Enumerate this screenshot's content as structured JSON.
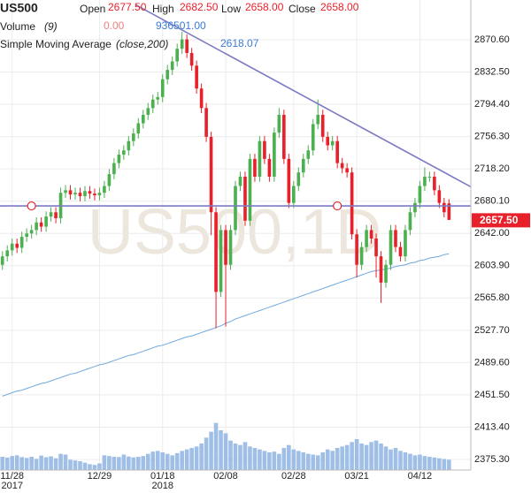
{
  "chart_data": {
    "type": "candlestick",
    "watermark": "US500,1D",
    "grid": true,
    "xlim": [
      -0.5,
      96.5
    ],
    "ylim": [
      2362.8,
      2917.5
    ],
    "yticks": [
      {
        "value": 2870.6,
        "label": "2870.60"
      },
      {
        "value": 2832.5,
        "label": "2832.50"
      },
      {
        "value": 2794.4,
        "label": "2794.40"
      },
      {
        "value": 2756.3,
        "label": "2756.30"
      },
      {
        "value": 2718.2,
        "label": "2718.20"
      },
      {
        "value": 2680.1,
        "label": "2680.10"
      },
      {
        "value": 2642,
        "label": "2642.00"
      },
      {
        "value": 2603.9,
        "label": "2603.90"
      },
      {
        "value": 2565.8,
        "label": "2565.80"
      },
      {
        "value": 2527.7,
        "label": "2527.70"
      },
      {
        "value": 2489.6,
        "label": "2489.60"
      },
      {
        "value": 2451.5,
        "label": "2451.50"
      },
      {
        "value": 2413.4,
        "label": "2413.40"
      },
      {
        "value": 2375.3,
        "label": "2375.30"
      }
    ],
    "categories": [
      null,
      null,
      "11/28",
      null,
      null,
      null,
      null,
      null,
      null,
      null,
      null,
      null,
      null,
      null,
      null,
      null,
      null,
      null,
      null,
      null,
      "12/29",
      null,
      null,
      null,
      null,
      null,
      null,
      null,
      null,
      null,
      null,
      null,
      null,
      "01/18",
      null,
      null,
      null,
      null,
      null,
      null,
      null,
      null,
      null,
      null,
      null,
      null,
      "02/08",
      null,
      null,
      null,
      null,
      null,
      null,
      null,
      null,
      null,
      null,
      null,
      null,
      null,
      "02/28",
      null,
      null,
      null,
      null,
      null,
      null,
      null,
      null,
      null,
      null,
      null,
      null,
      "03/21",
      null,
      null,
      null,
      null,
      null,
      null,
      null,
      null,
      null,
      null,
      null,
      null,
      "04/12",
      null,
      null,
      null,
      null,
      null,
      null
    ],
    "x_sublabels": [
      null,
      null,
      "2017",
      null,
      null,
      null,
      null,
      null,
      null,
      null,
      null,
      null,
      null,
      null,
      null,
      null,
      null,
      null,
      null,
      null,
      null,
      null,
      null,
      null,
      null,
      null,
      null,
      null,
      null,
      null,
      null,
      null,
      null,
      "2018",
      null,
      null,
      null,
      null,
      null,
      null,
      null,
      null,
      null,
      null,
      null,
      null,
      null,
      null,
      null,
      null,
      null,
      null,
      null,
      null,
      null,
      null,
      null,
      null,
      null,
      null,
      null,
      null,
      null,
      null,
      null,
      null,
      null,
      null,
      null,
      null,
      null,
      null,
      null,
      null,
      null,
      null,
      null,
      null,
      null,
      null,
      null,
      null,
      null,
      null,
      null,
      null,
      null,
      null,
      null,
      null,
      null,
      null,
      null
    ],
    "series": [
      {
        "name": "US500",
        "type": "candlestick",
        "up_color": "#4caf50",
        "down_color": "#e8202a",
        "legend": [
          {
            "label": "Open",
            "value": "2677.50"
          },
          {
            "label": "High",
            "value": "2682.50"
          },
          {
            "label": "Low",
            "value": "2658.00"
          },
          {
            "label": "Close",
            "value": "2658.00"
          }
        ],
        "open": [
          2605,
          2615,
          2622,
          2630,
          2625,
          2638,
          2642,
          2646,
          2655,
          2650,
          2662,
          2667,
          2660,
          2690,
          2693,
          2688,
          2690,
          2686,
          2692,
          2689,
          2687,
          2690,
          2698,
          2712,
          2725,
          2735,
          2740,
          2751,
          2760,
          2772,
          2782,
          2790,
          2800,
          2803,
          2824,
          2835,
          2845,
          2860,
          2871,
          2855,
          2840,
          2813,
          2790,
          2756,
          2667,
          2573,
          2646,
          2605,
          2646,
          2698,
          2709,
          2657,
          2730,
          2709,
          2751,
          2730,
          2709,
          2761,
          2782,
          2730,
          2678,
          2698,
          2714,
          2730,
          2740,
          2771,
          2782,
          2756,
          2746,
          2751,
          2725,
          2719,
          2714,
          2641,
          2605,
          2626,
          2646,
          2636,
          2615,
          2584,
          2605,
          2646,
          2626,
          2615,
          2646,
          2667,
          2678,
          2698,
          2709,
          2709,
          2693,
          2678,
          2677.5
        ],
        "high": [
          2621,
          2628,
          2636,
          2636,
          2644,
          2648,
          2652,
          2661,
          2661,
          2668,
          2673,
          2673,
          2696,
          2699,
          2699,
          2696,
          2696,
          2698,
          2698,
          2695,
          2696,
          2704,
          2718,
          2731,
          2741,
          2746,
          2757,
          2766,
          2778,
          2788,
          2796,
          2806,
          2809,
          2830,
          2841,
          2851,
          2866,
          2880,
          2877,
          2861,
          2846,
          2819,
          2796,
          2762,
          2673,
          2652,
          2652,
          2652,
          2704,
          2715,
          2715,
          2736,
          2736,
          2757,
          2757,
          2736,
          2767,
          2790,
          2788,
          2736,
          2704,
          2720,
          2736,
          2746,
          2777,
          2800,
          2788,
          2762,
          2757,
          2757,
          2731,
          2725,
          2720,
          2647,
          2632,
          2652,
          2652,
          2642,
          2621,
          2611,
          2652,
          2652,
          2632,
          2652,
          2673,
          2684,
          2704,
          2720,
          2715,
          2715,
          2699,
          2684,
          2682.5
        ],
        "low": [
          2599,
          2609,
          2616,
          2619,
          2619,
          2632,
          2636,
          2640,
          2644,
          2644,
          2656,
          2654,
          2654,
          2684,
          2682,
          2682,
          2680,
          2680,
          2683,
          2681,
          2681,
          2684,
          2692,
          2706,
          2719,
          2729,
          2734,
          2745,
          2754,
          2766,
          2776,
          2784,
          2794,
          2797,
          2818,
          2829,
          2839,
          2854,
          2849,
          2834,
          2807,
          2784,
          2750,
          2640,
          2530,
          2567,
          2532,
          2599,
          2640,
          2692,
          2651,
          2651,
          2703,
          2703,
          2724,
          2703,
          2703,
          2755,
          2724,
          2672,
          2672,
          2692,
          2708,
          2724,
          2734,
          2765,
          2750,
          2740,
          2740,
          2719,
          2713,
          2708,
          2635,
          2590,
          2599,
          2620,
          2630,
          2590,
          2560,
          2578,
          2599,
          2620,
          2609,
          2609,
          2640,
          2661,
          2672,
          2692,
          2703,
          2687,
          2672,
          2661,
          2658
        ],
        "close": [
          2615,
          2622,
          2630,
          2625,
          2638,
          2642,
          2646,
          2655,
          2650,
          2662,
          2667,
          2660,
          2690,
          2693,
          2688,
          2690,
          2686,
          2692,
          2689,
          2687,
          2690,
          2698,
          2712,
          2725,
          2735,
          2740,
          2751,
          2760,
          2772,
          2782,
          2790,
          2800,
          2803,
          2824,
          2835,
          2845,
          2860,
          2871,
          2855,
          2840,
          2813,
          2790,
          2756,
          2667,
          2573,
          2646,
          2605,
          2646,
          2698,
          2709,
          2657,
          2730,
          2709,
          2751,
          2730,
          2709,
          2761,
          2782,
          2730,
          2678,
          2698,
          2714,
          2730,
          2740,
          2771,
          2782,
          2756,
          2746,
          2751,
          2725,
          2719,
          2714,
          2641,
          2605,
          2626,
          2646,
          2636,
          2615,
          2584,
          2605,
          2646,
          2626,
          2615,
          2646,
          2667,
          2678,
          2698,
          2709,
          2709,
          2693,
          2678,
          2667,
          2658
        ]
      },
      {
        "name": "Simple Moving Average",
        "params": "(close,200)",
        "legend_value": "2618.07",
        "color": "#6fa8dc",
        "values": [
          2450,
          2452,
          2454,
          2456,
          2457,
          2459,
          2461,
          2463,
          2465,
          2466,
          2468,
          2470,
          2472,
          2474,
          2476,
          2477,
          2479,
          2481,
          2483,
          2485,
          2487,
          2488,
          2490,
          2492,
          2494,
          2496,
          2498,
          2499,
          2501,
          2503,
          2505,
          2507,
          2509,
          2510,
          2512,
          2514,
          2516,
          2518,
          2520,
          2521,
          2523,
          2525,
          2527,
          2529,
          2531,
          2533,
          2536,
          2538,
          2541,
          2543,
          2545,
          2547,
          2549,
          2551,
          2553,
          2555,
          2557,
          2559,
          2561,
          2563,
          2565,
          2567,
          2569,
          2571,
          2573,
          2575,
          2577,
          2579,
          2581,
          2583,
          2585,
          2587,
          2589,
          2591,
          2593,
          2595,
          2597,
          2598,
          2599,
          2600,
          2601,
          2603,
          2604,
          2605,
          2607,
          2608,
          2610,
          2611,
          2613,
          2614,
          2615,
          2617,
          2618.07
        ]
      },
      {
        "name": "Volume",
        "params": "(9)",
        "legend_values": [
          "0.00",
          "936501.00"
        ],
        "color": "#8fb4e3",
        "vlim": [
          0,
          6000000
        ],
        "values": [
          900000,
          850000,
          950000,
          1000000,
          880000,
          820000,
          900000,
          760000,
          980000,
          870000,
          930000,
          800000,
          1100000,
          1050000,
          700000,
          650000,
          600000,
          500000,
          400000,
          350000,
          450000,
          1000000,
          950000,
          900000,
          880000,
          1050000,
          920000,
          860000,
          900000,
          950000,
          1100000,
          1250000,
          1300000,
          1200000,
          1100000,
          1000000,
          1150000,
          1300000,
          1400000,
          1500000,
          1600000,
          1800000,
          2200000,
          2600000,
          3200000,
          2700000,
          2500000,
          2000000,
          1800000,
          1700000,
          1900000,
          1600000,
          1500000,
          1400000,
          1300000,
          1200000,
          1250000,
          1100000,
          1500000,
          1700000,
          1400000,
          1300000,
          1200000,
          1100000,
          1050000,
          1000000,
          1200000,
          1400000,
          1300000,
          1500000,
          1600000,
          1700000,
          1900000,
          2100000,
          1800000,
          1700000,
          1900000,
          2000000,
          1800000,
          1600000,
          1400000,
          1500000,
          1300000,
          1200000,
          1100000,
          1000000,
          1050000,
          950000,
          900000,
          850000,
          800000,
          750000,
          700000
        ]
      }
    ],
    "trendlines": [
      {
        "color": "#7b7bc4",
        "x": [
          27.4,
          96.5
        ],
        "y": [
          2912,
          2697
        ]
      },
      {
        "color": "#7b7bc4",
        "x": [
          -0.5,
          96.5
        ],
        "y": [
          2674.5,
          2674.5
        ],
        "markers_x": [
          6,
          69
        ],
        "marker_color": "#e8202a"
      }
    ],
    "last_price": {
      "value": 2657.5,
      "label": "2657.50",
      "color": "#e8202a"
    }
  }
}
